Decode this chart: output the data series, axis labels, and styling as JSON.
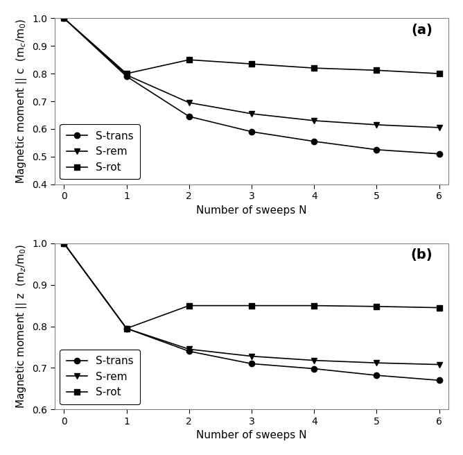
{
  "panel_a": {
    "label": "(a)",
    "ylabel": "Magnetic moment || c  (m$_c$/m$_0$)",
    "xlabel": "Number of sweeps N",
    "ylim": [
      0.4,
      1.0
    ],
    "xlim": [
      -0.15,
      6.15
    ],
    "yticks": [
      0.4,
      0.5,
      0.6,
      0.7,
      0.8,
      0.9,
      1.0
    ],
    "xticks": [
      0,
      1,
      2,
      3,
      4,
      5,
      6
    ],
    "series": {
      "S-trans": {
        "x": [
          0,
          1,
          2,
          3,
          4,
          5,
          6
        ],
        "y": [
          1.0,
          0.79,
          0.645,
          0.59,
          0.555,
          0.525,
          0.51
        ],
        "marker": "o",
        "color": "#000000",
        "linestyle": "-"
      },
      "S-rem": {
        "x": [
          0,
          1,
          2,
          3,
          4,
          5,
          6
        ],
        "y": [
          1.0,
          0.795,
          0.695,
          0.655,
          0.63,
          0.615,
          0.605
        ],
        "marker": "v",
        "color": "#000000",
        "linestyle": "-"
      },
      "S-rot": {
        "x": [
          0,
          1,
          2,
          3,
          4,
          5,
          6
        ],
        "y": [
          1.0,
          0.8,
          0.85,
          0.835,
          0.82,
          0.812,
          0.8
        ],
        "marker": "s",
        "color": "#000000",
        "linestyle": "-"
      }
    },
    "legend_order": [
      "S-trans",
      "S-rem",
      "S-rot"
    ],
    "legend_loc": "lower left"
  },
  "panel_b": {
    "label": "(b)",
    "ylabel": "Magnetic moment || z  (m$_z$/m$_0$)",
    "xlabel": "Number of sweeps N",
    "ylim": [
      0.6,
      1.0
    ],
    "xlim": [
      -0.15,
      6.15
    ],
    "yticks": [
      0.6,
      0.7,
      0.8,
      0.9,
      1.0
    ],
    "xticks": [
      0,
      1,
      2,
      3,
      4,
      5,
      6
    ],
    "series": {
      "S-trans": {
        "x": [
          0,
          1,
          2,
          3,
          4,
          5,
          6
        ],
        "y": [
          1.0,
          0.795,
          0.74,
          0.71,
          0.698,
          0.682,
          0.67
        ],
        "marker": "o",
        "color": "#000000",
        "linestyle": "-"
      },
      "S-rem": {
        "x": [
          0,
          1,
          2,
          3,
          4,
          5,
          6
        ],
        "y": [
          1.0,
          0.795,
          0.745,
          0.728,
          0.718,
          0.712,
          0.708
        ],
        "marker": "v",
        "color": "#000000",
        "linestyle": "-"
      },
      "S-rot": {
        "x": [
          0,
          1,
          2,
          3,
          4,
          5,
          6
        ],
        "y": [
          1.0,
          0.795,
          0.85,
          0.85,
          0.85,
          0.848,
          0.845
        ],
        "marker": "s",
        "color": "#000000",
        "linestyle": "-"
      }
    },
    "legend_order": [
      "S-trans",
      "S-rem",
      "S-rot"
    ],
    "legend_loc": "lower left"
  },
  "figure_bg": "#ffffff",
  "axes_bg": "#ffffff",
  "axes_edge_color": "#808080",
  "marker_size": 6,
  "linewidth": 1.2,
  "font_size": 11,
  "label_font_size": 11,
  "tick_font_size": 10,
  "panel_label_fontsize": 14
}
